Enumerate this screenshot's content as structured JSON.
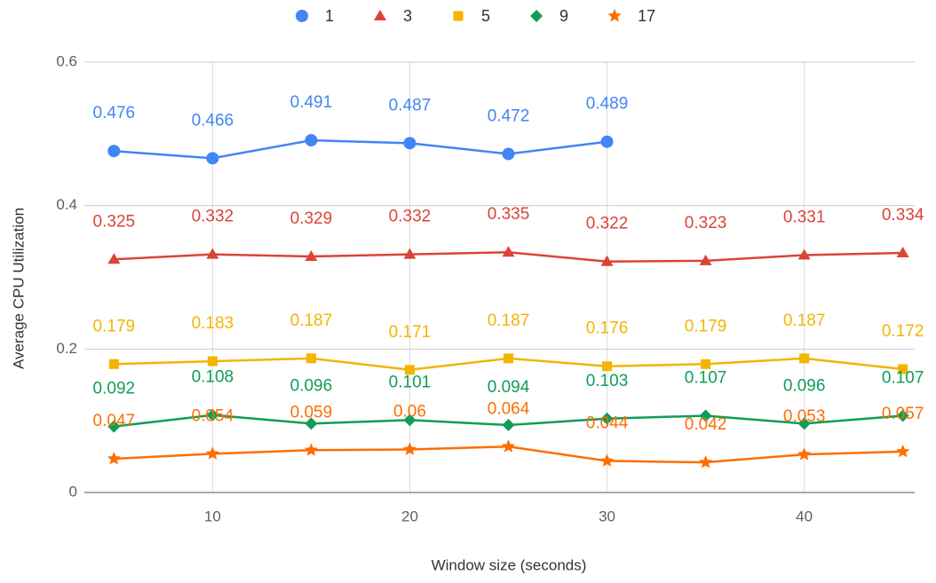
{
  "chart_data": {
    "type": "line",
    "x_label": "Window size (seconds)",
    "y_label": "Average CPU Utilization",
    "x": [
      5,
      10,
      15,
      20,
      25,
      30,
      35,
      40,
      45
    ],
    "series": [
      {
        "name": "1",
        "color": "#4285f4",
        "marker": "circle",
        "values": [
          0.476,
          0.466,
          0.491,
          0.487,
          0.472,
          0.489,
          null,
          null,
          null
        ]
      },
      {
        "name": "3",
        "color": "#db4437",
        "marker": "triangle",
        "values": [
          0.325,
          0.332,
          0.329,
          0.332,
          0.335,
          0.322,
          0.323,
          0.331,
          0.334
        ]
      },
      {
        "name": "5",
        "color": "#f4b400",
        "marker": "square",
        "values": [
          0.179,
          0.183,
          0.187,
          0.171,
          0.187,
          0.176,
          0.179,
          0.187,
          0.172
        ]
      },
      {
        "name": "9",
        "color": "#0f9d58",
        "marker": "diamond",
        "values": [
          0.092,
          0.108,
          0.096,
          0.101,
          0.094,
          0.103,
          0.107,
          0.096,
          0.107
        ]
      },
      {
        "name": "17",
        "color": "#ff6d01",
        "marker": "star",
        "values": [
          0.047,
          0.054,
          0.059,
          0.06,
          0.064,
          0.044,
          0.042,
          0.053,
          0.057
        ]
      }
    ],
    "xlim": [
      3.5,
      45.6
    ],
    "xticks": [
      10,
      20,
      30,
      40
    ],
    "ylim": [
      0,
      0.6
    ],
    "yticks": [
      0,
      0.2,
      0.4,
      0.6
    ],
    "grid": true,
    "legend": "top"
  }
}
